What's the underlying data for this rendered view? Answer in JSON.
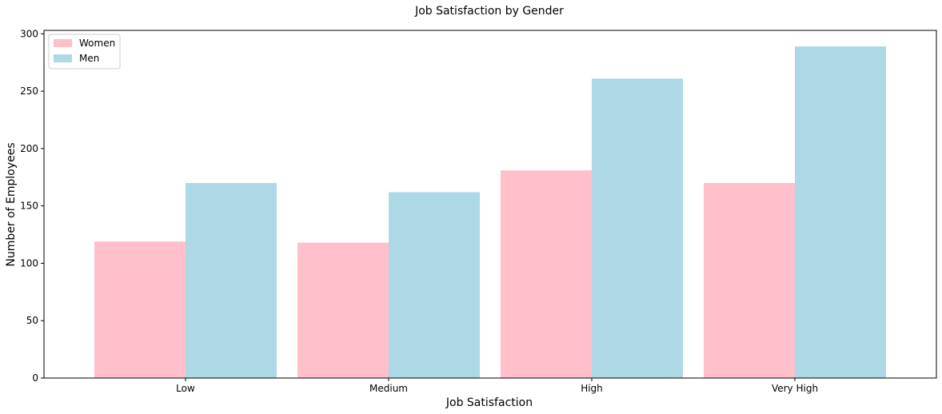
{
  "chart_data": {
    "type": "bar",
    "title": "Job Satisfaction by Gender",
    "xlabel": "Job Satisfaction",
    "ylabel": "Number of Employees",
    "categories": [
      "Low",
      "Medium",
      "High",
      "Very High"
    ],
    "series": [
      {
        "name": "Women",
        "color": "#ffc0cb",
        "values": [
          119,
          118,
          181,
          170
        ]
      },
      {
        "name": "Men",
        "color": "#add8e6",
        "values": [
          170,
          162,
          261,
          289
        ]
      }
    ],
    "ylim": [
      0,
      303
    ],
    "yticks": [
      0,
      50,
      100,
      150,
      200,
      250,
      300
    ],
    "grid": false,
    "legend_position": "top-left"
  }
}
